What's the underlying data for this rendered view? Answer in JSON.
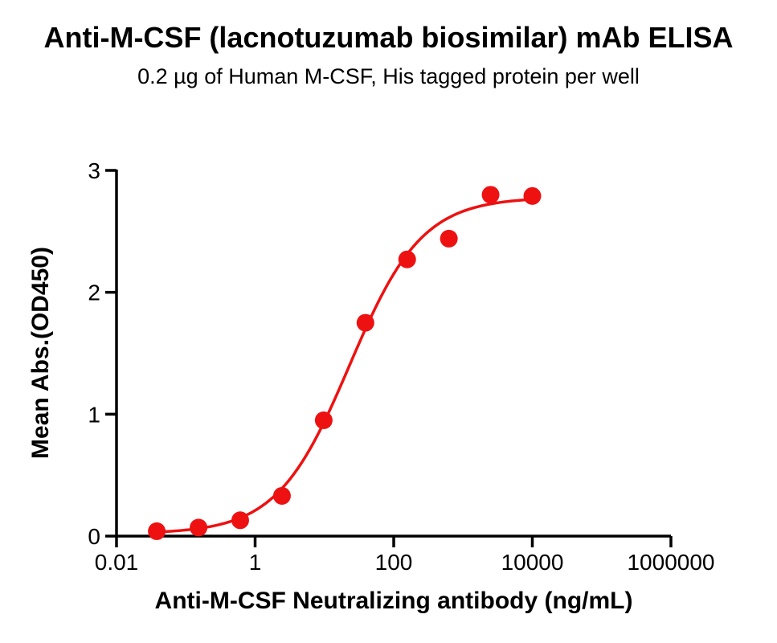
{
  "chart_data": {
    "type": "scatter",
    "title": "Anti-M-CSF (lacnotuzumab biosimilar) mAb ELISA",
    "subtitle": "0.2 µg of Human M-CSF, His tagged protein per well",
    "xlabel": "Anti-M-CSF Neutralizing antibody (ng/mL)",
    "ylabel": "Mean Abs.(OD450)",
    "x_scale": "log10",
    "xlim": [
      0.01,
      1000000
    ],
    "ylim": [
      0,
      3
    ],
    "grid": false,
    "legend_position": "none",
    "x_ticks": [
      {
        "value": 0.01,
        "label": "0.01"
      },
      {
        "value": 1,
        "label": "1"
      },
      {
        "value": 100,
        "label": "100"
      },
      {
        "value": 10000,
        "label": "10000"
      },
      {
        "value": 1000000,
        "label": "1000000"
      }
    ],
    "y_ticks": [
      {
        "value": 0,
        "label": "0"
      },
      {
        "value": 1,
        "label": "1"
      },
      {
        "value": 2,
        "label": "2"
      },
      {
        "value": 3,
        "label": "3"
      }
    ],
    "series": [
      {
        "name": "Anti-M-CSF neutralizing antibody",
        "marker": "circle",
        "marker_radius_px": 11,
        "color": "#EE1111",
        "points": [
          {
            "x": 0.0381,
            "y": 0.04
          },
          {
            "x": 0.1526,
            "y": 0.07
          },
          {
            "x": 0.61,
            "y": 0.13
          },
          {
            "x": 2.44,
            "y": 0.33
          },
          {
            "x": 9.77,
            "y": 0.95
          },
          {
            "x": 39.06,
            "y": 1.75
          },
          {
            "x": 156.25,
            "y": 2.27
          },
          {
            "x": 625,
            "y": 2.44
          },
          {
            "x": 2500,
            "y": 2.8
          },
          {
            "x": 10000,
            "y": 2.79
          }
        ]
      }
    ],
    "fit_curve": {
      "model": "four-parameter-logistic",
      "bottom": 0.02,
      "top": 2.78,
      "ec50": 23,
      "hill": 0.83,
      "x_start": 0.0381,
      "x_end": 10000,
      "color": "#EE1111"
    },
    "colors": {
      "axis": "#000000",
      "text": "#000000",
      "series": "#EE1111",
      "background": "#FFFFFF"
    }
  }
}
